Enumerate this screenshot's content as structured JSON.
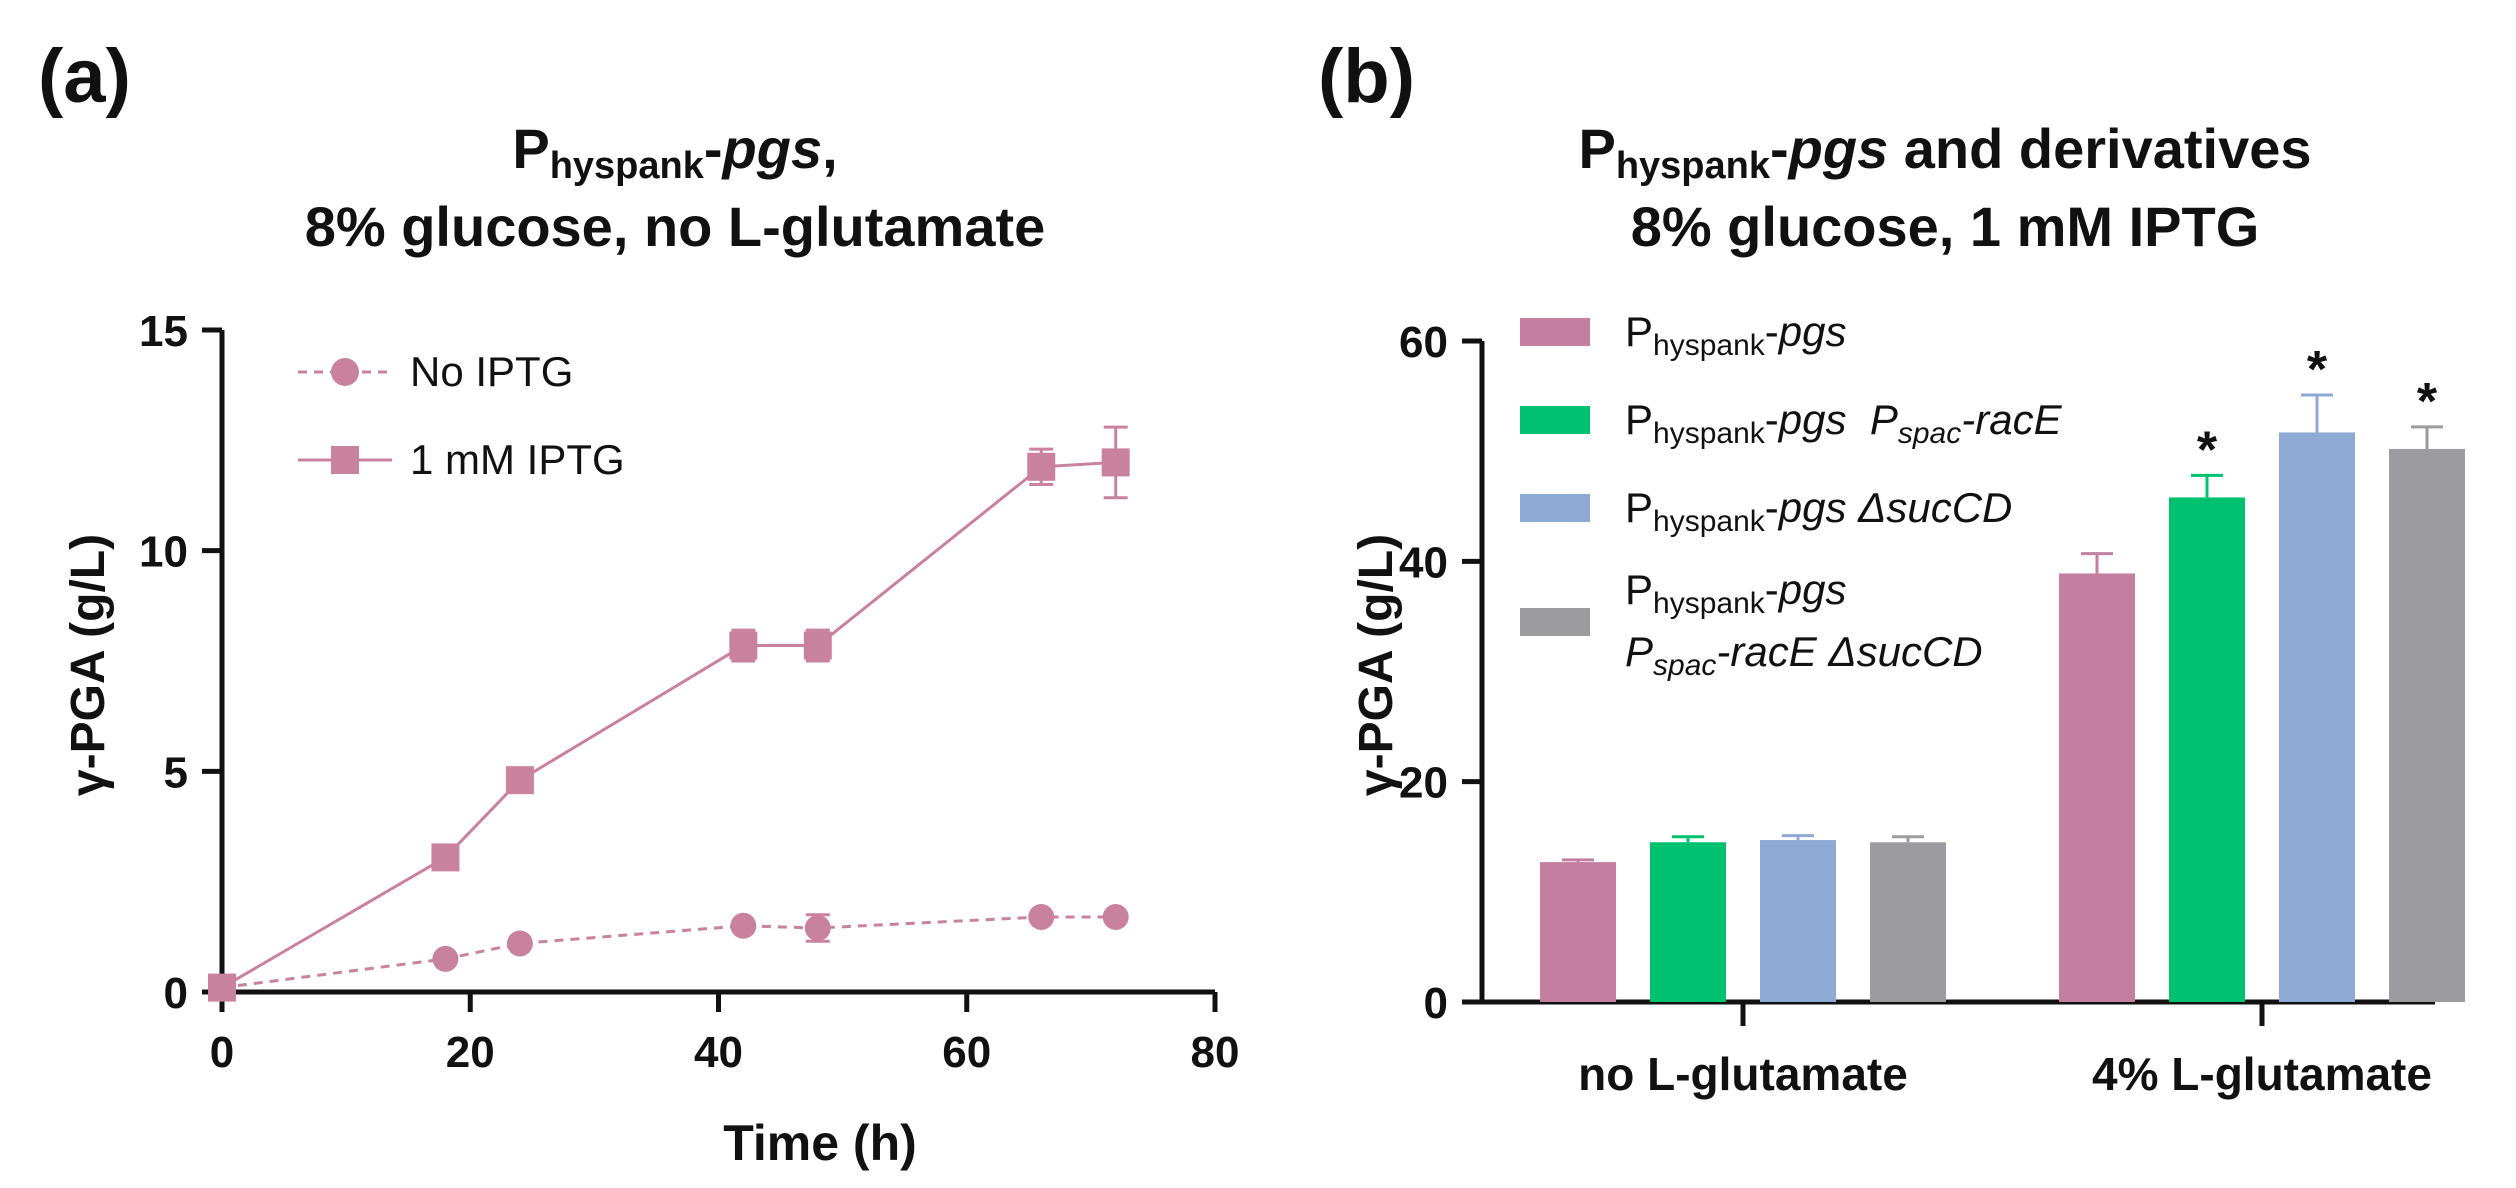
{
  "panels": {
    "a": {
      "label": "(a)"
    },
    "b": {
      "label": "(b)"
    }
  },
  "chart_data": [
    {
      "type": "line",
      "panel": "a",
      "title_line1": {
        "main": "P",
        "sub": "hyspank",
        "dash": "-",
        "italic": "pgs",
        "tail": ","
      },
      "title_line2": "8% glucose, no L-glutamate",
      "xlabel": "Time (h)",
      "ylabel": "γ-PGA (g/L)",
      "xlim": [
        0,
        80
      ],
      "ylim": [
        0,
        15
      ],
      "xticks": [
        "0",
        "20",
        "40",
        "60",
        "80"
      ],
      "yticks": [
        "0",
        "5",
        "10",
        "15"
      ],
      "color": "#c9829e",
      "series": [
        {
          "name": "No IPTG",
          "marker": "circle",
          "linestyle": "dashed",
          "x": [
            0,
            18,
            24,
            42,
            48,
            66,
            72
          ],
          "y": [
            0.1,
            0.75,
            1.1,
            1.5,
            1.45,
            1.7,
            1.7
          ],
          "err": [
            0,
            0,
            0,
            0,
            0.3,
            0,
            0
          ]
        },
        {
          "name": "1 mM IPTG",
          "marker": "square",
          "linestyle": "solid",
          "x": [
            0,
            18,
            24,
            42,
            48,
            66,
            72
          ],
          "y": [
            0.1,
            3.05,
            4.8,
            7.85,
            7.85,
            11.9,
            12.0
          ],
          "err": [
            0,
            0,
            0,
            0.35,
            0.35,
            0.4,
            0.8
          ]
        }
      ]
    },
    {
      "type": "bar",
      "panel": "b",
      "title_line1": {
        "main": "P",
        "sub": "hyspank",
        "dash": "-",
        "italic": "pgs",
        "tail": " and derivatives"
      },
      "title_line2": "8% glucose, 1 mM IPTG",
      "ylabel": "γ-PGA (g/L)",
      "ylim": [
        0,
        60
      ],
      "yticks": [
        "0",
        "20",
        "40",
        "60"
      ],
      "categories": [
        "no L-glutamate",
        "4% L-glutamate"
      ],
      "significance_mark": "*",
      "series": [
        {
          "legend": [
            {
              "main": "P",
              "sub": "hyspank",
              "dash": "-",
              "italic": "pgs"
            }
          ],
          "color": "#c37fa0",
          "values": [
            12.7,
            38.9
          ],
          "err": [
            0.2,
            1.8
          ],
          "significant": [
            false,
            false
          ]
        },
        {
          "legend": [
            {
              "main": "P",
              "sub": "hyspank",
              "dash": "-",
              "italic": "pgs ",
              "main2": "P",
              "sub2": "spac",
              "dash2": "-",
              "italic2": "racE"
            }
          ],
          "color": "#00c16f",
          "values": [
            14.5,
            45.8
          ],
          "err": [
            0.5,
            2.0
          ],
          "significant": [
            false,
            true
          ]
        },
        {
          "legend": [
            {
              "main": "P",
              "sub": "hyspank",
              "dash": "-",
              "italic": "pgs ΔsucCD"
            }
          ],
          "color": "#8eaad4",
          "values": [
            14.7,
            51.7
          ],
          "err": [
            0.4,
            3.4
          ],
          "significant": [
            false,
            true
          ]
        },
        {
          "legend": [
            {
              "main": "P",
              "sub": "hyspank",
              "dash": "-",
              "italic": "pgs"
            },
            {
              "main": "P",
              "sub": "spac",
              "dash": "-",
              "italic": "racE ΔsucCD"
            }
          ],
          "color": "#9c9b9f",
          "values": [
            14.5,
            50.2
          ],
          "err": [
            0.5,
            2.0
          ],
          "significant": [
            false,
            true
          ]
        }
      ]
    }
  ]
}
